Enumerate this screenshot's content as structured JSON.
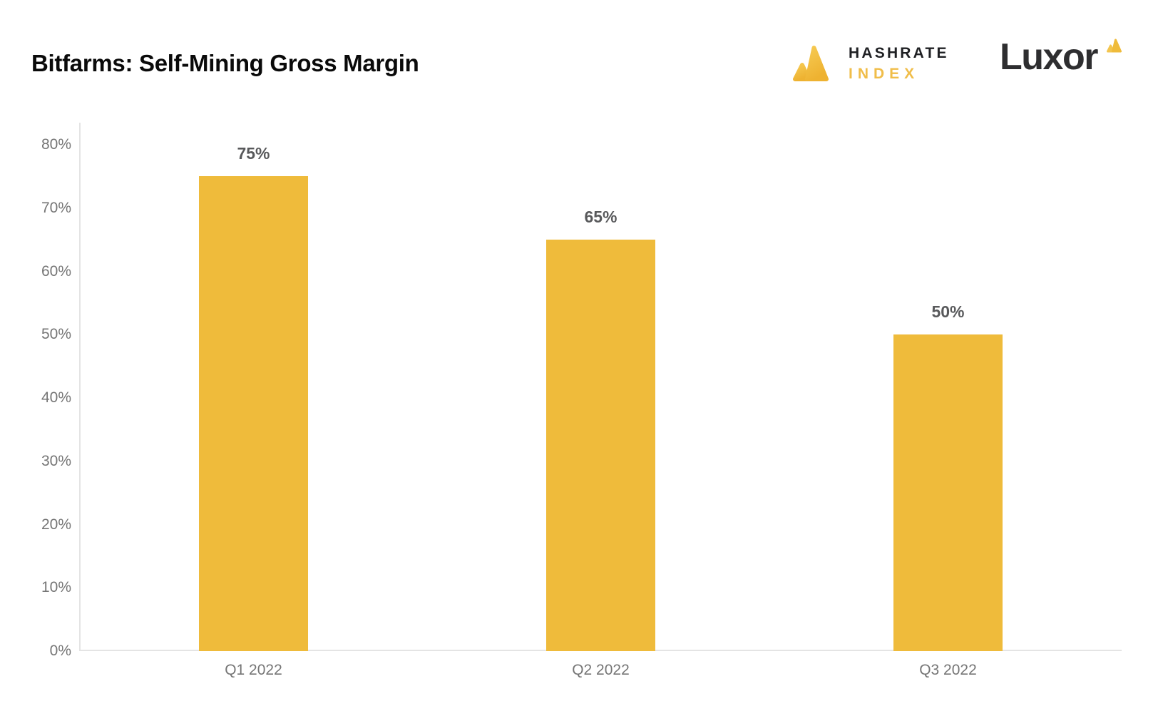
{
  "header": {
    "title": "Bitfarms: Self-Mining Gross Margin",
    "hashrate_logo": {
      "line1": "HASHRATE",
      "line2": "INDEX"
    },
    "luxor_logo": {
      "text": "Luxor"
    }
  },
  "colors": {
    "bar_gold": "#EFBB3B",
    "axis_line": "#E4E4E4",
    "tick_label_gray": "#757575",
    "data_label_gray": "#58595B",
    "title_black": "#0A0A0A",
    "hashrate_text_dark": "#1F2023",
    "index_gold": "#F0BD49",
    "luxor_dark": "#2E2E30"
  },
  "chart_data": {
    "type": "bar",
    "title": "Bitfarms: Self-Mining Gross Margin",
    "categories": [
      "Q1 2022",
      "Q2 2022",
      "Q3 2022"
    ],
    "values": [
      75,
      65,
      50
    ],
    "data_labels": [
      "75%",
      "65%",
      "50%"
    ],
    "yticks": [
      "0%",
      "10%",
      "20%",
      "30%",
      "40%",
      "50%",
      "60%",
      "70%",
      "80%"
    ],
    "ytick_values": [
      0,
      10,
      20,
      30,
      40,
      50,
      60,
      70,
      80
    ],
    "ylim": [
      0,
      83.5
    ],
    "xlabel": "",
    "ylabel": "",
    "grid": false,
    "legend": null,
    "bar_color": "#EFBB3B"
  }
}
